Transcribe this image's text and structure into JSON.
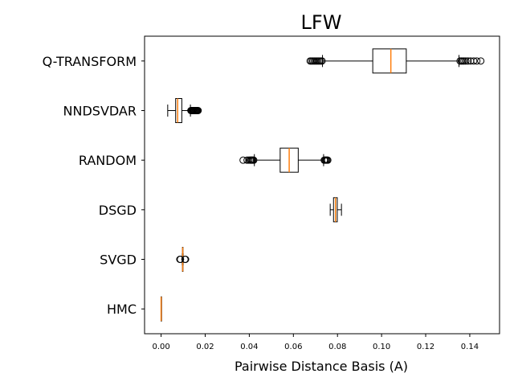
{
  "chart_data": {
    "type": "boxplot",
    "orientation": "horizontal",
    "title": "LFW",
    "xlabel": "Pairwise Distance Basis (A)",
    "ylabel": "",
    "xlim": [
      -0.0075,
      0.1535
    ],
    "xticks": [
      0.0,
      0.02,
      0.04,
      0.06,
      0.08,
      0.1,
      0.12,
      0.14
    ],
    "xtick_labels": [
      "0.00",
      "0.02",
      "0.04",
      "0.06",
      "0.08",
      "0.10",
      "0.12",
      "0.14"
    ],
    "grid": false,
    "legend": "none",
    "colors": {
      "box": "#000000",
      "median": "#ff7f0e",
      "flier": "#000000"
    },
    "categories": [
      "Q-TRANSFORM",
      "NNDSVDAR",
      "RANDOM",
      "DSGD",
      "SVGD",
      "HMC"
    ],
    "boxes": [
      {
        "label": "Q-TRANSFORM",
        "whisker_low": 0.0732,
        "q1": 0.096,
        "median": 0.1042,
        "q3": 0.1112,
        "whisker_high": 0.1351,
        "fliers": [
          0.0676,
          0.0682,
          0.0688,
          0.0694,
          0.07,
          0.0706,
          0.0712,
          0.0718,
          0.0724,
          0.073,
          0.1356,
          0.1362,
          0.1368,
          0.1374,
          0.1382,
          0.1392,
          0.1404,
          0.1418,
          0.1432,
          0.145
        ]
      },
      {
        "label": "NNDSVDAR",
        "whisker_low": 0.003,
        "q1": 0.0066,
        "median": 0.0075,
        "q3": 0.0094,
        "whisker_high": 0.0133,
        "fliers": [
          0.0135,
          0.0138,
          0.0141,
          0.0144,
          0.0147,
          0.015,
          0.0153,
          0.0156,
          0.0159,
          0.0162,
          0.0165,
          0.0168
        ]
      },
      {
        "label": "RANDOM",
        "whisker_low": 0.0423,
        "q1": 0.054,
        "median": 0.0581,
        "q3": 0.0622,
        "whisker_high": 0.0737,
        "fliers": [
          0.0372,
          0.039,
          0.0398,
          0.0404,
          0.0408,
          0.0412,
          0.0416,
          0.042,
          0.074,
          0.0744,
          0.0748,
          0.0752,
          0.0756
        ]
      },
      {
        "label": "DSGD",
        "whisker_low": 0.0767,
        "q1": 0.0782,
        "median": 0.0791,
        "q3": 0.0799,
        "whisker_high": 0.0818,
        "fliers": []
      },
      {
        "label": "SVGD",
        "whisker_low": 0.0096,
        "q1": 0.0097,
        "median": 0.0098,
        "q3": 0.0099,
        "whisker_high": 0.01,
        "fliers": [
          0.0085,
          0.0088,
          0.0108,
          0.0111
        ]
      },
      {
        "label": "HMC",
        "whisker_low": 0.0,
        "q1": 0.0,
        "median": 0.0,
        "q3": 0.0,
        "whisker_high": 0.0,
        "fliers": []
      }
    ]
  }
}
